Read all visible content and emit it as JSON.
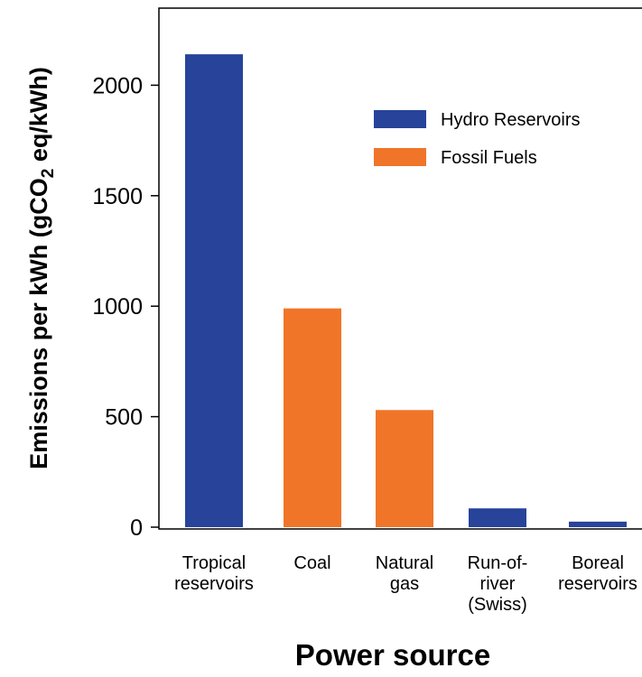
{
  "chart_data": {
    "type": "bar",
    "title": "",
    "xlabel": "Power source",
    "ylabel_prefix": "Emissions per kWh (gCO",
    "ylabel_sub": "2",
    "ylabel_suffix": " eq/kWh)",
    "ylim": [
      0,
      2400
    ],
    "yticks": [
      0,
      500,
      1000,
      1500,
      2000
    ],
    "grid": false,
    "legend_position": "top-right",
    "categories": [
      [
        "Tropical",
        "reservoirs"
      ],
      [
        "Coal"
      ],
      [
        "Natural",
        "gas"
      ],
      [
        "Run-of-",
        "river",
        "(Swiss)"
      ],
      [
        "Boreal",
        "reservoirs"
      ]
    ],
    "values": [
      2140,
      990,
      530,
      85,
      25
    ],
    "bar_series": [
      0,
      1,
      1,
      0,
      0
    ],
    "series": [
      {
        "name": "Hydro Reservoirs",
        "color": "#27439A"
      },
      {
        "name": "Fossil Fuels",
        "color": "#F07528"
      }
    ]
  }
}
